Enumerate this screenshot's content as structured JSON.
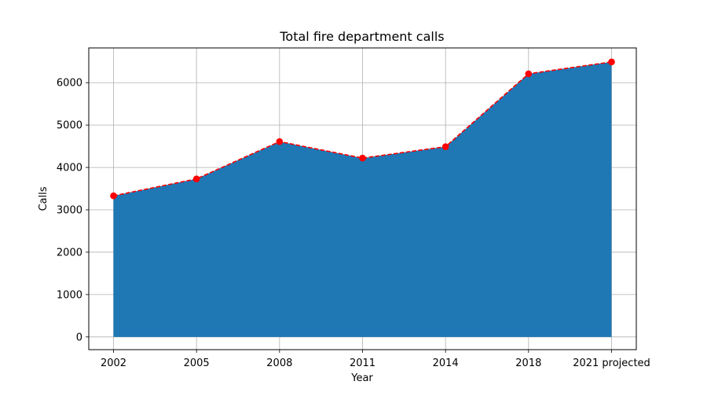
{
  "chart_data": {
    "type": "area",
    "title": "Total fire department calls",
    "xlabel": "Year",
    "ylabel": "Calls",
    "categories": [
      "2002",
      "2005",
      "2008",
      "2011",
      "2014",
      "2018",
      "2021 projected"
    ],
    "series": [
      {
        "values": [
          3330,
          3730,
          4610,
          4220,
          4490,
          6210,
          6490
        ]
      }
    ],
    "yticks": [
      0,
      1000,
      2000,
      3000,
      4000,
      5000,
      6000
    ],
    "ylim": [
      -300,
      6820
    ],
    "grid": true,
    "legend": "none",
    "colors": {
      "area_fill": "#1f77b4",
      "line": "#ff0000",
      "marker": "#ff0000",
      "grid": "#b0b0b0"
    }
  }
}
